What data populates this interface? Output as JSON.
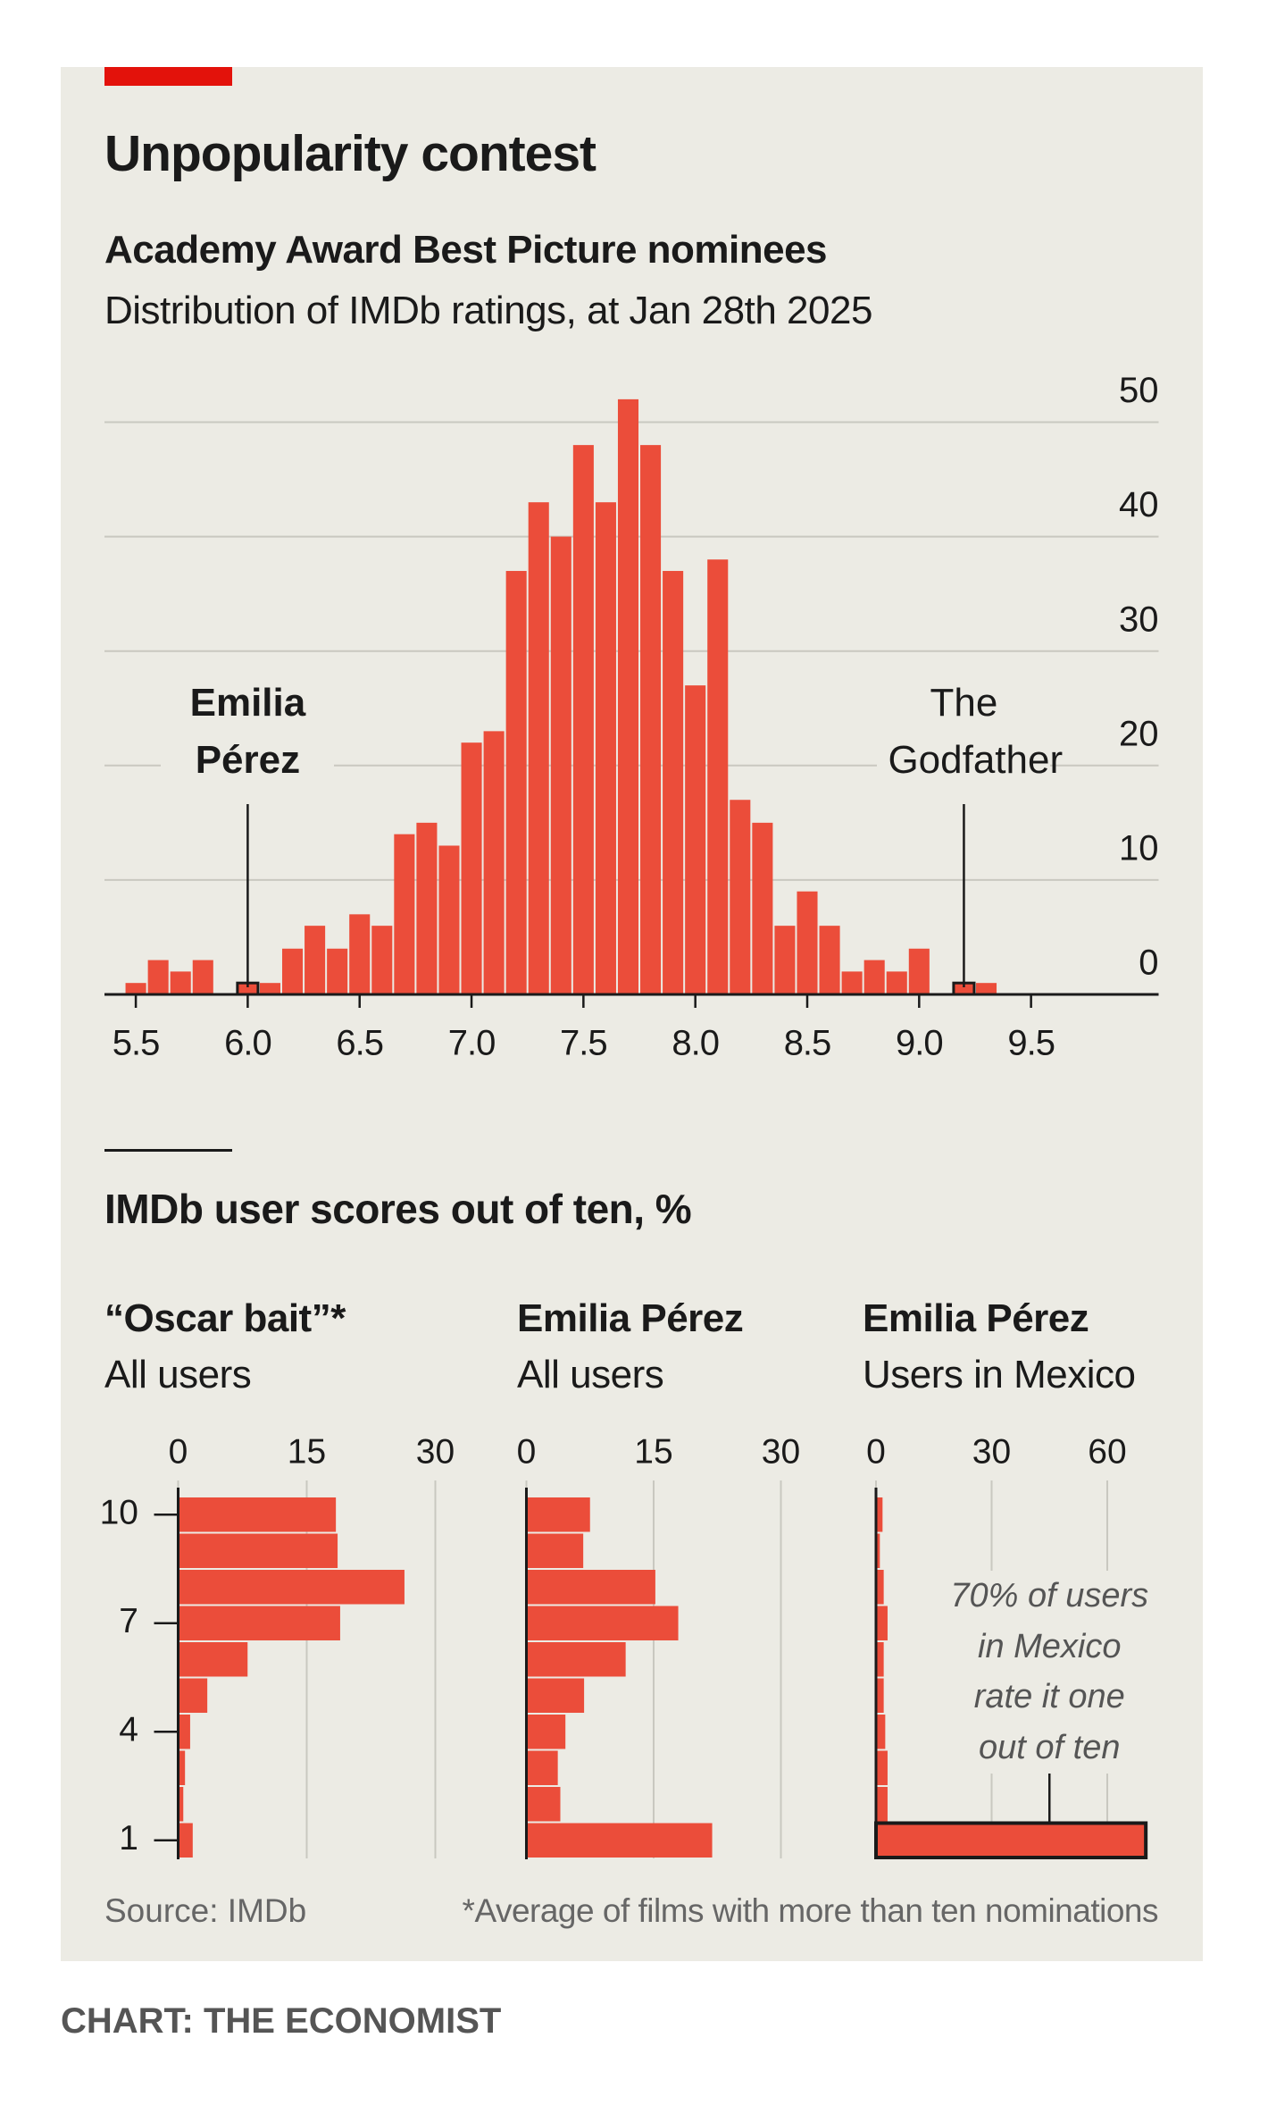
{
  "title": "Unpopularity contest",
  "section_title": "IMDb user scores out of ten, %",
  "footer": {
    "source": "Source: IMDb",
    "note": "*Average of films with more than ten nominations",
    "credit": "CHART: THE ECONOMIST"
  },
  "chart_data": [
    {
      "type": "histogram",
      "title": "Academy Award Best Picture nominees",
      "subtitle": "Distribution of IMDb ratings, at Jan 28th 2025",
      "bins": [
        5.45,
        5.55,
        5.65,
        5.75,
        5.85,
        5.95,
        6.05,
        6.15,
        6.25,
        6.35,
        6.45,
        6.55,
        6.65,
        6.75,
        6.85,
        6.95,
        7.05,
        7.15,
        7.25,
        7.35,
        7.45,
        7.55,
        7.65,
        7.75,
        7.85,
        7.95,
        8.05,
        8.15,
        8.25,
        8.35,
        8.45,
        8.55,
        8.65,
        8.75,
        8.85,
        8.95,
        9.05,
        9.15,
        9.25,
        9.35
      ],
      "values": [
        1,
        3,
        2,
        3,
        0,
        1,
        1,
        4,
        6,
        4,
        7,
        6,
        14,
        15,
        13,
        22,
        23,
        37,
        43,
        40,
        48,
        43,
        52,
        48,
        37,
        27,
        38,
        17,
        15,
        6,
        9,
        6,
        2,
        3,
        2,
        4,
        0,
        1,
        1
      ],
      "color": "#eb4d3a",
      "highlight_stroke": "#1a1a1a",
      "xlim": [
        5.36,
        10.07
      ],
      "xticks": [
        5.5,
        {
          "value": 6,
          "label": "6.0"
        },
        6.5,
        {
          "value": 7,
          "label": "7.0"
        },
        7.5,
        {
          "value": 8,
          "label": "8.0"
        },
        8.5,
        {
          "value": 9,
          "label": "9.0"
        },
        9.5
      ],
      "ylim": [
        0,
        50
      ],
      "yticks": [
        0,
        10,
        20,
        30,
        40,
        50
      ],
      "grid": true,
      "annotations": [
        {
          "label": "Emilia Pérez",
          "x": 6.0,
          "bold": true
        },
        {
          "label": "The Godfather",
          "x": 9.2,
          "bold": false
        }
      ]
    },
    {
      "type": "barh",
      "title": "“Oscar bait”*",
      "subtitle": "All users",
      "categories": [
        "1",
        null,
        null,
        "4",
        null,
        null,
        "7",
        null,
        null,
        "10"
      ],
      "values": [
        1.7,
        0.6,
        0.8,
        1.4,
        3.4,
        8.1,
        18.9,
        26.4,
        18.6,
        18.4
      ],
      "color": "#eb4d3a",
      "xlim": [
        0,
        30
      ],
      "xticks": [
        0,
        15,
        30
      ],
      "grid": true
    },
    {
      "type": "barh",
      "title": "Emilia Pérez",
      "subtitle": "All users",
      "values": [
        21.9,
        4.0,
        3.7,
        4.6,
        6.8,
        11.7,
        17.9,
        15.2,
        6.7,
        7.5
      ],
      "color": "#eb4d3a",
      "xlim": [
        0,
        30
      ],
      "xticks": [
        0,
        15,
        30
      ],
      "grid": true
    },
    {
      "type": "barh",
      "title": "Emilia Pérez",
      "subtitle": "Users in Mexico",
      "values": [
        70,
        3,
        3,
        2.4,
        2,
        2,
        3,
        2,
        1,
        1.7
      ],
      "color": "#eb4d3a",
      "xlim": [
        0,
        60
      ],
      "xticks": [
        0,
        30,
        60
      ],
      "grid": true,
      "annotation": {
        "text": "70% of users in Mexico rate it one out of ten",
        "bar": 0
      }
    }
  ]
}
